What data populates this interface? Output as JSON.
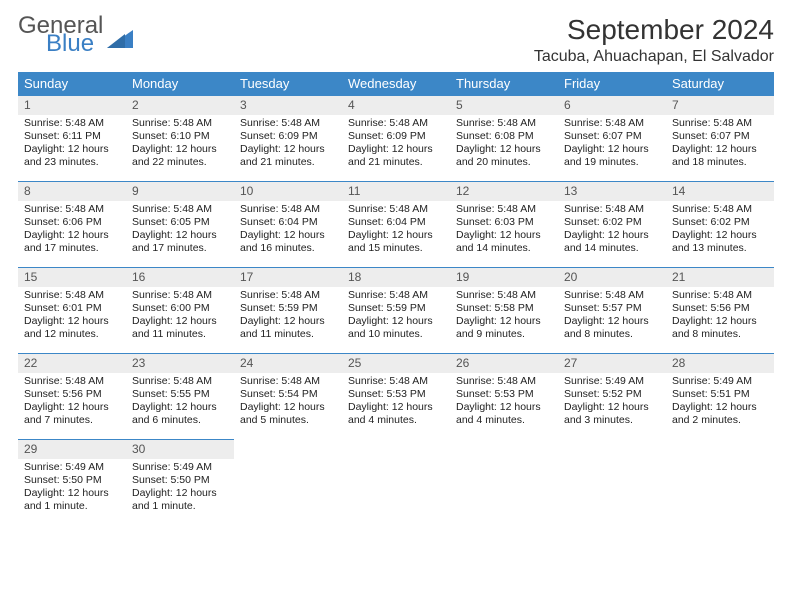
{
  "logo": {
    "word1": "General",
    "word2": "Blue",
    "icon_color": "#3a7fc4"
  },
  "title": "September 2024",
  "location": "Tacuba, Ahuachapan, El Salvador",
  "day_headers": [
    "Sunday",
    "Monday",
    "Tuesday",
    "Wednesday",
    "Thursday",
    "Friday",
    "Saturday"
  ],
  "colors": {
    "header_bg": "#3c87c7",
    "header_text": "#ffffff",
    "daynum_bg": "#ededed",
    "daynum_border": "#3c87c7",
    "body_text": "#222222"
  },
  "fonts": {
    "title_size": 28,
    "location_size": 16,
    "header_size": 13,
    "daynum_size": 12,
    "body_size": 10.5
  },
  "weeks": [
    [
      {
        "n": "1",
        "sr": "Sunrise: 5:48 AM",
        "ss": "Sunset: 6:11 PM",
        "dl1": "Daylight: 12 hours",
        "dl2": "and 23 minutes."
      },
      {
        "n": "2",
        "sr": "Sunrise: 5:48 AM",
        "ss": "Sunset: 6:10 PM",
        "dl1": "Daylight: 12 hours",
        "dl2": "and 22 minutes."
      },
      {
        "n": "3",
        "sr": "Sunrise: 5:48 AM",
        "ss": "Sunset: 6:09 PM",
        "dl1": "Daylight: 12 hours",
        "dl2": "and 21 minutes."
      },
      {
        "n": "4",
        "sr": "Sunrise: 5:48 AM",
        "ss": "Sunset: 6:09 PM",
        "dl1": "Daylight: 12 hours",
        "dl2": "and 21 minutes."
      },
      {
        "n": "5",
        "sr": "Sunrise: 5:48 AM",
        "ss": "Sunset: 6:08 PM",
        "dl1": "Daylight: 12 hours",
        "dl2": "and 20 minutes."
      },
      {
        "n": "6",
        "sr": "Sunrise: 5:48 AM",
        "ss": "Sunset: 6:07 PM",
        "dl1": "Daylight: 12 hours",
        "dl2": "and 19 minutes."
      },
      {
        "n": "7",
        "sr": "Sunrise: 5:48 AM",
        "ss": "Sunset: 6:07 PM",
        "dl1": "Daylight: 12 hours",
        "dl2": "and 18 minutes."
      }
    ],
    [
      {
        "n": "8",
        "sr": "Sunrise: 5:48 AM",
        "ss": "Sunset: 6:06 PM",
        "dl1": "Daylight: 12 hours",
        "dl2": "and 17 minutes."
      },
      {
        "n": "9",
        "sr": "Sunrise: 5:48 AM",
        "ss": "Sunset: 6:05 PM",
        "dl1": "Daylight: 12 hours",
        "dl2": "and 17 minutes."
      },
      {
        "n": "10",
        "sr": "Sunrise: 5:48 AM",
        "ss": "Sunset: 6:04 PM",
        "dl1": "Daylight: 12 hours",
        "dl2": "and 16 minutes."
      },
      {
        "n": "11",
        "sr": "Sunrise: 5:48 AM",
        "ss": "Sunset: 6:04 PM",
        "dl1": "Daylight: 12 hours",
        "dl2": "and 15 minutes."
      },
      {
        "n": "12",
        "sr": "Sunrise: 5:48 AM",
        "ss": "Sunset: 6:03 PM",
        "dl1": "Daylight: 12 hours",
        "dl2": "and 14 minutes."
      },
      {
        "n": "13",
        "sr": "Sunrise: 5:48 AM",
        "ss": "Sunset: 6:02 PM",
        "dl1": "Daylight: 12 hours",
        "dl2": "and 14 minutes."
      },
      {
        "n": "14",
        "sr": "Sunrise: 5:48 AM",
        "ss": "Sunset: 6:02 PM",
        "dl1": "Daylight: 12 hours",
        "dl2": "and 13 minutes."
      }
    ],
    [
      {
        "n": "15",
        "sr": "Sunrise: 5:48 AM",
        "ss": "Sunset: 6:01 PM",
        "dl1": "Daylight: 12 hours",
        "dl2": "and 12 minutes."
      },
      {
        "n": "16",
        "sr": "Sunrise: 5:48 AM",
        "ss": "Sunset: 6:00 PM",
        "dl1": "Daylight: 12 hours",
        "dl2": "and 11 minutes."
      },
      {
        "n": "17",
        "sr": "Sunrise: 5:48 AM",
        "ss": "Sunset: 5:59 PM",
        "dl1": "Daylight: 12 hours",
        "dl2": "and 11 minutes."
      },
      {
        "n": "18",
        "sr": "Sunrise: 5:48 AM",
        "ss": "Sunset: 5:59 PM",
        "dl1": "Daylight: 12 hours",
        "dl2": "and 10 minutes."
      },
      {
        "n": "19",
        "sr": "Sunrise: 5:48 AM",
        "ss": "Sunset: 5:58 PM",
        "dl1": "Daylight: 12 hours",
        "dl2": "and 9 minutes."
      },
      {
        "n": "20",
        "sr": "Sunrise: 5:48 AM",
        "ss": "Sunset: 5:57 PM",
        "dl1": "Daylight: 12 hours",
        "dl2": "and 8 minutes."
      },
      {
        "n": "21",
        "sr": "Sunrise: 5:48 AM",
        "ss": "Sunset: 5:56 PM",
        "dl1": "Daylight: 12 hours",
        "dl2": "and 8 minutes."
      }
    ],
    [
      {
        "n": "22",
        "sr": "Sunrise: 5:48 AM",
        "ss": "Sunset: 5:56 PM",
        "dl1": "Daylight: 12 hours",
        "dl2": "and 7 minutes."
      },
      {
        "n": "23",
        "sr": "Sunrise: 5:48 AM",
        "ss": "Sunset: 5:55 PM",
        "dl1": "Daylight: 12 hours",
        "dl2": "and 6 minutes."
      },
      {
        "n": "24",
        "sr": "Sunrise: 5:48 AM",
        "ss": "Sunset: 5:54 PM",
        "dl1": "Daylight: 12 hours",
        "dl2": "and 5 minutes."
      },
      {
        "n": "25",
        "sr": "Sunrise: 5:48 AM",
        "ss": "Sunset: 5:53 PM",
        "dl1": "Daylight: 12 hours",
        "dl2": "and 4 minutes."
      },
      {
        "n": "26",
        "sr": "Sunrise: 5:48 AM",
        "ss": "Sunset: 5:53 PM",
        "dl1": "Daylight: 12 hours",
        "dl2": "and 4 minutes."
      },
      {
        "n": "27",
        "sr": "Sunrise: 5:49 AM",
        "ss": "Sunset: 5:52 PM",
        "dl1": "Daylight: 12 hours",
        "dl2": "and 3 minutes."
      },
      {
        "n": "28",
        "sr": "Sunrise: 5:49 AM",
        "ss": "Sunset: 5:51 PM",
        "dl1": "Daylight: 12 hours",
        "dl2": "and 2 minutes."
      }
    ],
    [
      {
        "n": "29",
        "sr": "Sunrise: 5:49 AM",
        "ss": "Sunset: 5:50 PM",
        "dl1": "Daylight: 12 hours",
        "dl2": "and 1 minute."
      },
      {
        "n": "30",
        "sr": "Sunrise: 5:49 AM",
        "ss": "Sunset: 5:50 PM",
        "dl1": "Daylight: 12 hours",
        "dl2": "and 1 minute."
      },
      {
        "empty": true
      },
      {
        "empty": true
      },
      {
        "empty": true
      },
      {
        "empty": true
      },
      {
        "empty": true
      }
    ]
  ]
}
